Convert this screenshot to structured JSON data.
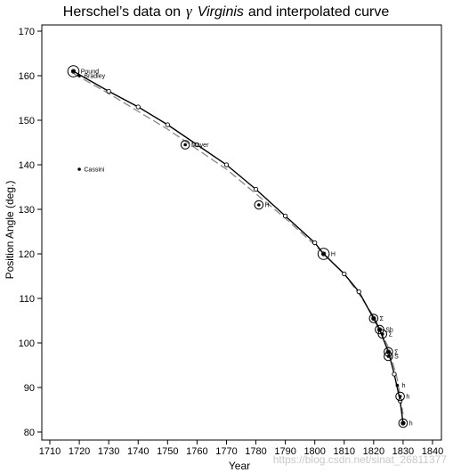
{
  "chart_data": {
    "type": "scatter",
    "title_prefix": "Herschel’s data on",
    "title_symbol": "γ",
    "title_italic": "Virginis",
    "title_suffix": "and interpolated curve",
    "xlabel": "Year",
    "ylabel": "Position Angle (deg.)",
    "xlim": [
      1710,
      1840
    ],
    "ylim": [
      80,
      170
    ],
    "xticks": [
      1710,
      1720,
      1730,
      1740,
      1750,
      1760,
      1770,
      1780,
      1790,
      1800,
      1810,
      1820,
      1830,
      1840
    ],
    "yticks": [
      80,
      90,
      100,
      110,
      120,
      130,
      140,
      150,
      160,
      170
    ],
    "grid": false,
    "legend": "none",
    "observations": [
      {
        "x": 1718,
        "y": 161,
        "label": "Pound",
        "weight": 3
      },
      {
        "x": 1720,
        "y": 160,
        "label": "Bradley",
        "weight": 1
      },
      {
        "x": 1720,
        "y": 139,
        "label": "Cassini",
        "weight": 1
      },
      {
        "x": 1756,
        "y": 144.5,
        "label": "Mayer",
        "weight": 2
      },
      {
        "x": 1781,
        "y": 131,
        "label": "H",
        "weight": 2
      },
      {
        "x": 1803,
        "y": 120,
        "label": "H",
        "weight": 3
      },
      {
        "x": 1820,
        "y": 105.5,
        "label": "Σ",
        "weight": 2
      },
      {
        "x": 1822,
        "y": 103,
        "label": "Sh",
        "weight": 2
      },
      {
        "x": 1823,
        "y": 102,
        "label": "Σ",
        "weight": 2
      },
      {
        "x": 1825,
        "y": 98,
        "label": "Σ",
        "weight": 2
      },
      {
        "x": 1825,
        "y": 97,
        "label": "S",
        "weight": 2
      },
      {
        "x": 1828,
        "y": 90.5,
        "label": "h",
        "weight": 1
      },
      {
        "x": 1829,
        "y": 88,
        "label": "h",
        "weight": 2
      },
      {
        "x": 1830,
        "y": 82,
        "label": "h",
        "weight": 2
      }
    ],
    "series": [
      {
        "name": "",
        "style": "solid",
        "color": "#000000",
        "x": [
          1718,
          1730,
          1740,
          1750,
          1760,
          1770,
          1780,
          1790,
          1800,
          1803,
          1810,
          1815,
          1820,
          1822,
          1825,
          1827,
          1829,
          1830
        ],
        "y": [
          161,
          156.5,
          153,
          149,
          144.5,
          140,
          134.5,
          128.5,
          122.5,
          120,
          115.5,
          111.5,
          105.5,
          103,
          98,
          93,
          87,
          82
        ]
      },
      {
        "name": "",
        "style": "dashed",
        "color": "#888888",
        "x": [
          1718,
          1730,
          1740,
          1750,
          1760,
          1770,
          1780,
          1790,
          1800,
          1810,
          1815,
          1820,
          1825,
          1828,
          1830
        ],
        "y": [
          160.5,
          156,
          152,
          148,
          143.5,
          139,
          133.5,
          128,
          122,
          115.5,
          111,
          106,
          99,
          92,
          84
        ]
      }
    ]
  },
  "watermark": "https://blog.csdn.net/sinat_26811377"
}
